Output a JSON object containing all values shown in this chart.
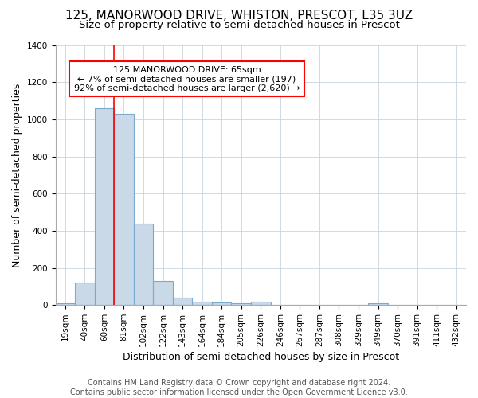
{
  "title": "125, MANORWOOD DRIVE, WHISTON, PRESCOT, L35 3UZ",
  "subtitle": "Size of property relative to semi-detached houses in Prescot",
  "xlabel": "Distribution of semi-detached houses by size in Prescot",
  "ylabel": "Number of semi-detached properties",
  "categories": [
    "19sqm",
    "40sqm",
    "60sqm",
    "81sqm",
    "102sqm",
    "122sqm",
    "143sqm",
    "164sqm",
    "184sqm",
    "205sqm",
    "226sqm",
    "246sqm",
    "267sqm",
    "287sqm",
    "308sqm",
    "329sqm",
    "349sqm",
    "370sqm",
    "391sqm",
    "411sqm",
    "432sqm"
  ],
  "values": [
    10,
    120,
    1060,
    1030,
    440,
    130,
    40,
    20,
    15,
    10,
    20,
    0,
    0,
    0,
    0,
    0,
    10,
    0,
    0,
    0,
    0
  ],
  "bar_color": "#c9d9e8",
  "bar_edge_color": "#7aaace",
  "red_line_x": 2.5,
  "annotation_text": "125 MANORWOOD DRIVE: 65sqm\n← 7% of semi-detached houses are smaller (197)\n92% of semi-detached houses are larger (2,620) →",
  "annotation_box_color": "white",
  "annotation_box_edge": "red",
  "footer_line1": "Contains HM Land Registry data © Crown copyright and database right 2024.",
  "footer_line2": "Contains public sector information licensed under the Open Government Licence v3.0.",
  "ylim": [
    0,
    1400
  ],
  "background_color": "white",
  "plot_bg_color": "white",
  "grid_color": "#c8d4de",
  "title_fontsize": 11,
  "subtitle_fontsize": 9.5,
  "axis_label_fontsize": 9,
  "tick_fontsize": 7.5,
  "footer_fontsize": 7,
  "annotation_fontsize": 8
}
